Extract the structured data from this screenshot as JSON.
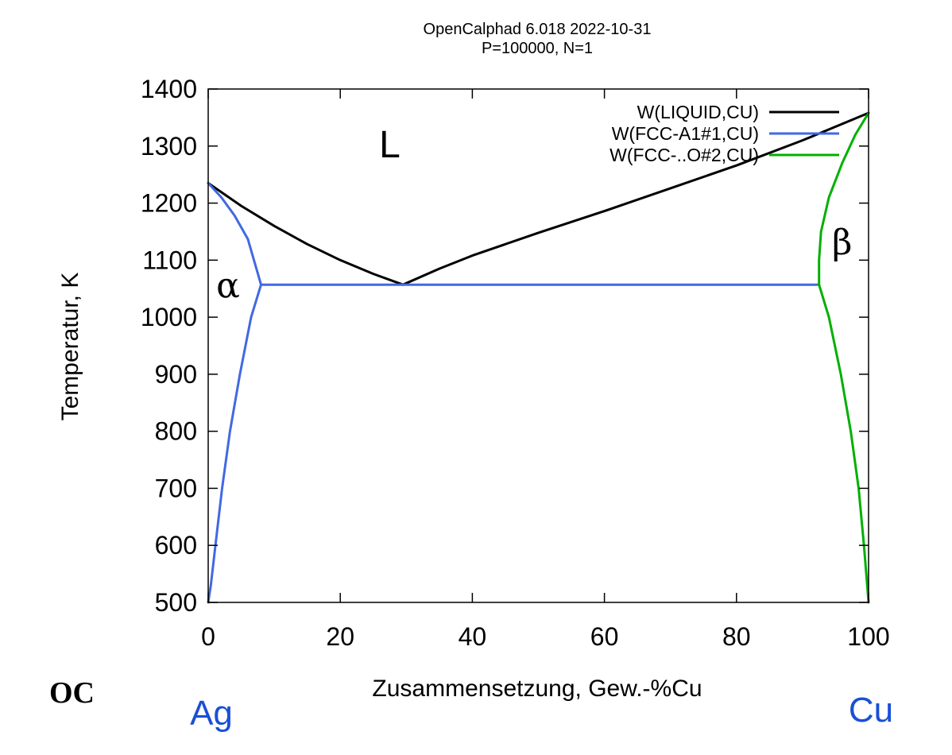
{
  "chart_data": {
    "type": "line",
    "title": "OpenCalphad 6.018 2022-10-31",
    "subtitle": "P=100000, N=1",
    "xlabel": "Zusammensetzung, Gew.-%Cu",
    "ylabel": "Temperatur, K",
    "xlim": [
      0,
      100
    ],
    "ylim": [
      500,
      1400
    ],
    "xticks": [
      0,
      20,
      40,
      60,
      80,
      100
    ],
    "yticks": [
      500,
      600,
      700,
      800,
      900,
      1000,
      1100,
      1200,
      1300,
      1400
    ],
    "grid": false,
    "legend_position": "top-right",
    "series": [
      {
        "name": "W(LIQUID,CU)",
        "color": "#000000",
        "segments": [
          [
            [
              0,
              1235
            ],
            [
              5,
              1195
            ],
            [
              10,
              1160
            ],
            [
              15,
              1128
            ],
            [
              20,
              1100
            ],
            [
              25,
              1076
            ],
            [
              29.5,
              1057
            ]
          ],
          [
            [
              29.5,
              1057
            ],
            [
              35,
              1085
            ],
            [
              40,
              1108
            ],
            [
              50,
              1148
            ],
            [
              60,
              1186
            ],
            [
              70,
              1226
            ],
            [
              80,
              1266
            ],
            [
              90,
              1310
            ],
            [
              100,
              1358
            ]
          ]
        ]
      },
      {
        "name": "W(FCC-A1#1,CU)",
        "color": "#4169e1",
        "segments": [
          [
            [
              0,
              1235
            ],
            [
              2,
              1210
            ],
            [
              4,
              1178
            ],
            [
              6,
              1137
            ],
            [
              8,
              1057
            ]
          ],
          [
            [
              8,
              1057
            ],
            [
              92.5,
              1057
            ]
          ],
          [
            [
              8,
              1057
            ],
            [
              6.5,
              1000
            ],
            [
              4.8,
              900
            ],
            [
              3.3,
              800
            ],
            [
              2.1,
              700
            ],
            [
              1.1,
              600
            ],
            [
              0.4,
              530
            ],
            [
              0,
              500
            ]
          ]
        ]
      },
      {
        "name": "W(FCC-..O#2,CU)",
        "color": "#00b000",
        "segments": [
          [
            [
              100,
              1358
            ],
            [
              98,
              1320
            ],
            [
              96,
              1270
            ],
            [
              94,
              1210
            ],
            [
              92.8,
              1150
            ],
            [
              92.5,
              1100
            ],
            [
              92.5,
              1057
            ]
          ],
          [
            [
              92.5,
              1057
            ],
            [
              94,
              1000
            ],
            [
              95.8,
              900
            ],
            [
              97.3,
              800
            ],
            [
              98.5,
              700
            ],
            [
              99.3,
              600
            ],
            [
              99.8,
              530
            ],
            [
              100,
              500
            ]
          ]
        ]
      }
    ],
    "annotations": [
      {
        "text": "L",
        "x": 27.5,
        "y": 1280
      },
      {
        "text": "α",
        "x": 3,
        "y": 1035
      },
      {
        "text": "β",
        "x": 96,
        "y": 1110
      }
    ]
  },
  "logo_text": "OC",
  "components": {
    "left": "Ag",
    "right": "Cu"
  },
  "component_color": "#1a4fd6"
}
